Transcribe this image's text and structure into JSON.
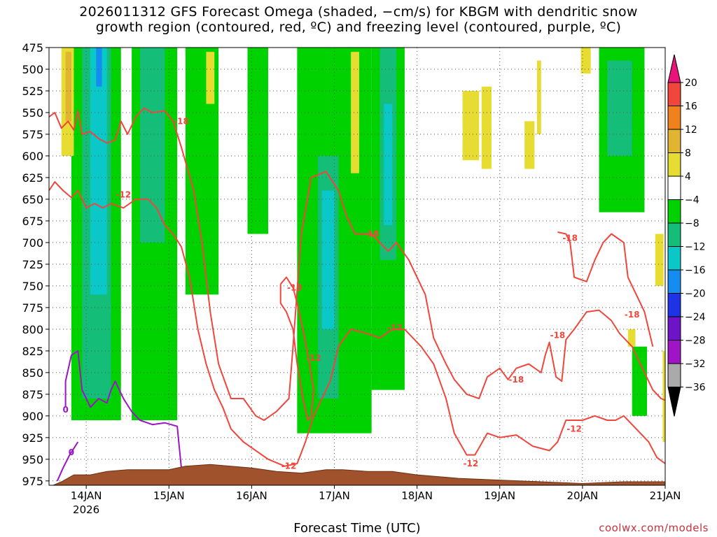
{
  "title_line1": "2026011312 GFS Forecast Omega (shaded, −cm/s) for KBGM with dendritic snow",
  "title_line2": "growth region (contoured, red, ºC) and freezing level (contoured, purple, ºC)",
  "x_axis_title": "Forecast Time (UTC)",
  "credit": "coolwx.com/models",
  "colors": {
    "dgz": "#f0463c",
    "freezing": "#9b14c8",
    "terrain": "#a0522d",
    "grid": "#555555"
  },
  "chart_data": {
    "type": "heatmap",
    "title": "2026011312 GFS Forecast Omega (shaded, −cm/s) for KBGM with dendritic snow growth region (contoured, red, ºC) and freezing level (contoured, purple, ºC)",
    "xlabel": "Forecast Time (UTC)",
    "ylabel": "",
    "x_range_days": [
      13.55,
      21.0
    ],
    "x_ticks": [
      {
        "day": 14,
        "label": "14JAN"
      },
      {
        "day": 15,
        "label": "15JAN"
      },
      {
        "day": 16,
        "label": "16JAN"
      },
      {
        "day": 17,
        "label": "17JAN"
      },
      {
        "day": 18,
        "label": "18JAN"
      },
      {
        "day": 19,
        "label": "19JAN"
      },
      {
        "day": 20,
        "label": "20JAN"
      },
      {
        "day": 21,
        "label": "21JAN"
      }
    ],
    "x_year_label": "2026",
    "y_range_hpa": [
      475,
      980
    ],
    "y_ticks": [
      475,
      500,
      525,
      550,
      575,
      600,
      625,
      650,
      675,
      700,
      725,
      750,
      775,
      800,
      825,
      850,
      875,
      900,
      925,
      950,
      975
    ],
    "grid": true,
    "colorbar": {
      "placement": "right",
      "labels": [
        "20",
        "16",
        "12",
        "8",
        "4",
        "−4",
        "−8",
        "−12",
        "−16",
        "−20",
        "−24",
        "−28",
        "−32",
        "−36"
      ],
      "bands": [
        {
          "range": [
            20,
            99
          ],
          "color": "#e8147a"
        },
        {
          "range": [
            16,
            20
          ],
          "color": "#f0463c"
        },
        {
          "range": [
            12,
            16
          ],
          "color": "#f0821e"
        },
        {
          "range": [
            8,
            12
          ],
          "color": "#e1b432"
        },
        {
          "range": [
            4,
            8
          ],
          "color": "#e6dc32"
        },
        {
          "range": [
            -4,
            4
          ],
          "color": "#ffffff"
        },
        {
          "range": [
            -8,
            -4
          ],
          "color": "#00d200"
        },
        {
          "range": [
            -12,
            -8
          ],
          "color": "#14be78"
        },
        {
          "range": [
            -16,
            -12
          ],
          "color": "#0ac8c8"
        },
        {
          "range": [
            -20,
            -16
          ],
          "color": "#148cf0"
        },
        {
          "range": [
            -24,
            -20
          ],
          "color": "#1e32e6"
        },
        {
          "range": [
            -28,
            -24
          ],
          "color": "#6e14c8"
        },
        {
          "range": [
            -32,
            -28
          ],
          "color": "#a014c8"
        },
        {
          "range": [
            -36,
            -32
          ],
          "color": "#aaaaaa"
        },
        {
          "range": [
            -99,
            -36
          ],
          "color": "#000000"
        }
      ]
    },
    "omega_regions": [
      {
        "value": -6,
        "day": [
          13.82,
          14.42
        ],
        "p": [
          475,
          905
        ]
      },
      {
        "value": -10,
        "day": [
          13.95,
          14.3
        ],
        "p": [
          475,
          880
        ]
      },
      {
        "value": -14,
        "day": [
          14.05,
          14.25
        ],
        "p": [
          475,
          760
        ]
      },
      {
        "value": -18,
        "day": [
          14.12,
          14.19
        ],
        "p": [
          475,
          520
        ]
      },
      {
        "value": -6,
        "day": [
          14.55,
          15.1
        ],
        "p": [
          475,
          905
        ]
      },
      {
        "value": -10,
        "day": [
          14.65,
          14.95
        ],
        "p": [
          475,
          700
        ]
      },
      {
        "value": -6,
        "day": [
          15.2,
          15.6
        ],
        "p": [
          475,
          760
        ]
      },
      {
        "value": -6,
        "day": [
          15.95,
          16.2
        ],
        "p": [
          475,
          690
        ]
      },
      {
        "value": -6,
        "day": [
          16.55,
          17.45
        ],
        "p": [
          475,
          920
        ]
      },
      {
        "value": -10,
        "day": [
          16.8,
          17.05
        ],
        "p": [
          600,
          880
        ]
      },
      {
        "value": -14,
        "day": [
          16.85,
          17.0
        ],
        "p": [
          640,
          800
        ]
      },
      {
        "value": -6,
        "day": [
          17.45,
          17.85
        ],
        "p": [
          475,
          870
        ]
      },
      {
        "value": -10,
        "day": [
          17.55,
          17.75
        ],
        "p": [
          475,
          720
        ]
      },
      {
        "value": -14,
        "day": [
          17.6,
          17.7
        ],
        "p": [
          540,
          680
        ]
      },
      {
        "value": -6,
        "day": [
          20.2,
          20.75
        ],
        "p": [
          475,
          665
        ]
      },
      {
        "value": -10,
        "day": [
          20.3,
          20.6
        ],
        "p": [
          490,
          600
        ]
      },
      {
        "value": -6,
        "day": [
          20.6,
          20.78
        ],
        "p": [
          820,
          900
        ]
      },
      {
        "value": 6,
        "day": [
          13.7,
          13.85
        ],
        "p": [
          475,
          600
        ]
      },
      {
        "value": 10,
        "day": [
          13.75,
          13.82
        ],
        "p": [
          480,
          560
        ]
      },
      {
        "value": 6,
        "day": [
          15.45,
          15.55
        ],
        "p": [
          480,
          540
        ]
      },
      {
        "value": 6,
        "day": [
          17.2,
          17.3
        ],
        "p": [
          480,
          620
        ]
      },
      {
        "value": 6,
        "day": [
          18.55,
          18.75
        ],
        "p": [
          525,
          605
        ]
      },
      {
        "value": 6,
        "day": [
          18.78,
          18.9
        ],
        "p": [
          520,
          615
        ]
      },
      {
        "value": 6,
        "day": [
          19.3,
          19.42
        ],
        "p": [
          560,
          615
        ]
      },
      {
        "value": 6,
        "day": [
          19.45,
          19.5
        ],
        "p": [
          490,
          575
        ]
      },
      {
        "value": 6,
        "day": [
          19.98,
          20.1
        ],
        "p": [
          475,
          505
        ]
      },
      {
        "value": 6,
        "day": [
          20.88,
          20.98
        ],
        "p": [
          690,
          750
        ]
      },
      {
        "value": 6,
        "day": [
          20.55,
          20.64
        ],
        "p": [
          800,
          820
        ]
      },
      {
        "value": 6,
        "day": [
          20.97,
          21.0
        ],
        "p": [
          825,
          930
        ]
      }
    ],
    "dgz_contour_labels": [
      {
        "label": "-18",
        "day": 15.15,
        "p": 560
      },
      {
        "label": "-12",
        "day": 14.45,
        "p": 645
      },
      {
        "label": "-18",
        "day": 16.52,
        "p": 752
      },
      {
        "label": "-18",
        "day": 17.45,
        "p": 690
      },
      {
        "label": "-12",
        "day": 16.75,
        "p": 833
      },
      {
        "label": "-12",
        "day": 17.73,
        "p": 798
      },
      {
        "label": "-12",
        "day": 18.65,
        "p": 955
      },
      {
        "label": "-18",
        "day": 19.2,
        "p": 858
      },
      {
        "label": "-18",
        "day": 19.7,
        "p": 807
      },
      {
        "label": "-18",
        "day": 19.85,
        "p": 695
      },
      {
        "label": "-18",
        "day": 20.6,
        "p": 783
      },
      {
        "label": "-12",
        "day": 19.9,
        "p": 915
      },
      {
        "label": "-12",
        "day": 16.45,
        "p": 958
      }
    ],
    "freezing_contour_labels": [
      {
        "label": "0",
        "day": 13.75,
        "p": 893
      },
      {
        "label": "0",
        "day": 13.82,
        "p": 942
      }
    ]
  }
}
